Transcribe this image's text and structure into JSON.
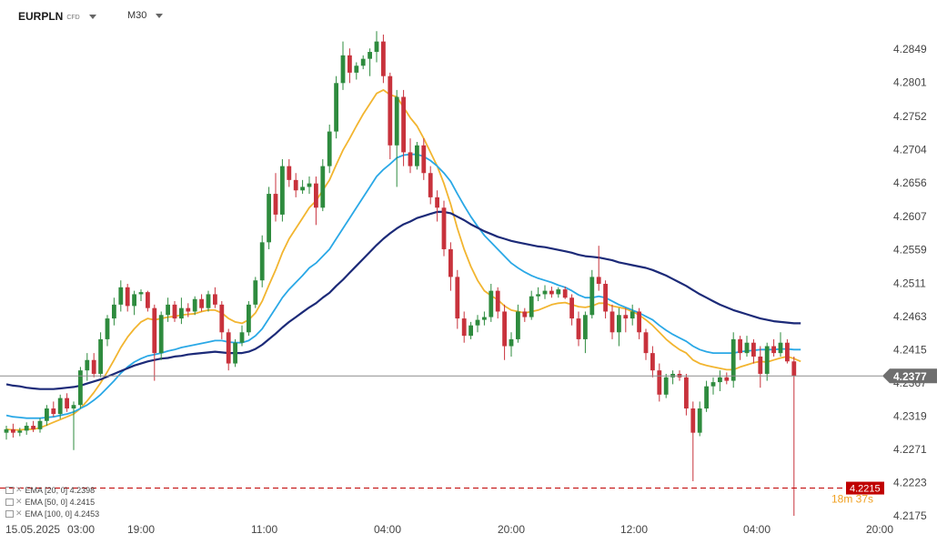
{
  "header": {
    "symbol": "EURPLN",
    "instrument_type": "CFD",
    "timeframe": "M30"
  },
  "legend": [
    {
      "label": "EMA [20, 0] 4.2398",
      "color": "#f2b530"
    },
    {
      "label": "EMA [50, 0] 4.2415",
      "color": "#2aa8e6"
    },
    {
      "label": "EMA [100, 0] 4.2453",
      "color": "#1c2a78"
    }
  ],
  "current_price_label": "4.2377",
  "order_label": "4.2215",
  "countdown": "18m 37s",
  "colors": {
    "up": "#2e8b3e",
    "down": "#c8323c",
    "order": "#c00000",
    "price_line": "#8c8c8c"
  },
  "chart_data": {
    "type": "candlestick",
    "y_axis": {
      "ticks": [
        "4.2849",
        "4.2801",
        "4.2752",
        "4.2704",
        "4.2656",
        "4.2607",
        "4.2559",
        "4.2511",
        "4.2463",
        "4.2415",
        "4.2367",
        "4.2319",
        "4.2271",
        "4.2223",
        "4.2175"
      ],
      "range": [
        4.216,
        4.2875
      ],
      "position": "right"
    },
    "x_axis": {
      "ticks": [
        "15.05.2025",
        "03:00",
        "19:00",
        "11:00",
        "04:00",
        "20:00",
        "12:00",
        "04:00",
        "20:00"
      ]
    },
    "current_price": 4.2377,
    "order_level": 4.2215,
    "candles": [
      [
        4.2295,
        4.2305,
        4.2285,
        4.23
      ],
      [
        4.23,
        4.2308,
        4.2288,
        4.2295
      ],
      [
        4.2295,
        4.2302,
        4.229,
        4.2298
      ],
      [
        4.2298,
        4.231,
        4.2292,
        4.2305
      ],
      [
        4.2305,
        4.2312,
        4.2296,
        4.23
      ],
      [
        4.23,
        4.2316,
        4.2295,
        4.2312
      ],
      [
        4.2312,
        4.2335,
        4.2305,
        4.233
      ],
      [
        4.233,
        4.234,
        4.2318,
        4.2322
      ],
      [
        4.2322,
        4.235,
        4.2315,
        4.2345
      ],
      [
        4.2345,
        4.2352,
        4.2325,
        4.233
      ],
      [
        4.233,
        4.234,
        4.227,
        4.2335
      ],
      [
        4.2335,
        4.239,
        4.233,
        4.2385
      ],
      [
        4.2385,
        4.241,
        4.237,
        4.24
      ],
      [
        4.24,
        4.241,
        4.2375,
        4.238
      ],
      [
        4.238,
        4.244,
        4.2375,
        4.243
      ],
      [
        4.243,
        4.2465,
        4.242,
        4.246
      ],
      [
        4.246,
        4.249,
        4.245,
        4.248
      ],
      [
        4.248,
        4.2515,
        4.247,
        4.2505
      ],
      [
        4.2505,
        4.251,
        4.247,
        4.2478
      ],
      [
        4.2478,
        4.25,
        4.2465,
        4.2495
      ],
      [
        4.2495,
        4.2502,
        4.2485,
        4.2498
      ],
      [
        4.2498,
        4.25,
        4.247,
        4.2475
      ],
      [
        4.2475,
        4.248,
        4.237,
        4.241
      ],
      [
        4.241,
        4.247,
        4.24,
        4.2465
      ],
      [
        4.2465,
        4.249,
        4.2455,
        4.248
      ],
      [
        4.248,
        4.2485,
        4.2455,
        4.246
      ],
      [
        4.246,
        4.249,
        4.2452,
        4.2475
      ],
      [
        4.2475,
        4.2482,
        4.2462,
        4.247
      ],
      [
        4.247,
        4.2492,
        4.2465,
        4.2488
      ],
      [
        4.2488,
        4.2495,
        4.247,
        4.2475
      ],
      [
        4.2475,
        4.25,
        4.247,
        4.2495
      ],
      [
        4.2495,
        4.2505,
        4.2475,
        4.248
      ],
      [
        4.248,
        4.2485,
        4.243,
        4.244
      ],
      [
        4.244,
        4.2445,
        4.2385,
        4.2395
      ],
      [
        4.2395,
        4.243,
        4.239,
        4.2425
      ],
      [
        4.2425,
        4.245,
        4.242,
        4.244
      ],
      [
        4.244,
        4.2485,
        4.2435,
        4.248
      ],
      [
        4.248,
        4.252,
        4.2475,
        4.2515
      ],
      [
        4.2515,
        4.258,
        4.2505,
        4.257
      ],
      [
        4.257,
        4.265,
        4.256,
        4.264
      ],
      [
        4.264,
        4.267,
        4.26,
        4.261
      ],
      [
        4.261,
        4.269,
        4.26,
        4.268
      ],
      [
        4.268,
        4.269,
        4.265,
        4.266
      ],
      [
        4.266,
        4.267,
        4.2635,
        4.2645
      ],
      [
        4.2645,
        4.266,
        4.264,
        4.265
      ],
      [
        4.265,
        4.2665,
        4.264,
        4.2655
      ],
      [
        4.2655,
        4.2665,
        4.2595,
        4.262
      ],
      [
        4.262,
        4.269,
        4.2615,
        4.268
      ],
      [
        4.268,
        4.274,
        4.267,
        4.273
      ],
      [
        4.273,
        4.281,
        4.272,
        4.28
      ],
      [
        4.28,
        4.286,
        4.279,
        4.284
      ],
      [
        4.284,
        4.285,
        4.28,
        4.2815
      ],
      [
        4.2815,
        4.283,
        4.2805,
        4.2825
      ],
      [
        4.2825,
        4.284,
        4.282,
        4.2835
      ],
      [
        4.2835,
        4.285,
        4.281,
        4.2845
      ],
      [
        4.2845,
        4.2875,
        4.283,
        4.286
      ],
      [
        4.286,
        4.287,
        4.28,
        4.281
      ],
      [
        4.281,
        4.2815,
        4.269,
        4.271
      ],
      [
        4.271,
        4.279,
        4.265,
        4.278
      ],
      [
        4.278,
        4.279,
        4.268,
        4.27
      ],
      [
        4.27,
        4.272,
        4.267,
        4.268
      ],
      [
        4.268,
        4.2715,
        4.2675,
        4.271
      ],
      [
        4.271,
        4.272,
        4.266,
        4.267
      ],
      [
        4.267,
        4.268,
        4.2625,
        4.2635
      ],
      [
        4.2635,
        4.2645,
        4.26,
        4.262
      ],
      [
        4.262,
        4.263,
        4.255,
        4.256
      ],
      [
        4.256,
        4.257,
        4.25,
        4.252
      ],
      [
        4.252,
        4.253,
        4.2445,
        4.246
      ],
      [
        4.246,
        4.247,
        4.2425,
        4.2435
      ],
      [
        4.2435,
        4.2455,
        4.243,
        4.245
      ],
      [
        4.245,
        4.2465,
        4.244,
        4.2458
      ],
      [
        4.2458,
        4.247,
        4.245,
        4.2462
      ],
      [
        4.2462,
        4.251,
        4.2455,
        4.25
      ],
      [
        4.25,
        4.2505,
        4.246,
        4.247
      ],
      [
        4.247,
        4.248,
        4.24,
        4.242
      ],
      [
        4.242,
        4.244,
        4.2405,
        4.243
      ],
      [
        4.243,
        4.248,
        4.2425,
        4.247
      ],
      [
        4.247,
        4.2475,
        4.2455,
        4.2462
      ],
      [
        4.2462,
        4.25,
        4.2458,
        4.2492
      ],
      [
        4.2492,
        4.2505,
        4.2485,
        4.2495
      ],
      [
        4.2495,
        4.2508,
        4.2488,
        4.25
      ],
      [
        4.25,
        4.2506,
        4.249,
        4.2495
      ],
      [
        4.2495,
        4.2505,
        4.249,
        4.2502
      ],
      [
        4.2502,
        4.2506,
        4.2488,
        4.249
      ],
      [
        4.249,
        4.2495,
        4.245,
        4.246
      ],
      [
        4.246,
        4.247,
        4.242,
        4.243
      ],
      [
        4.243,
        4.247,
        4.241,
        4.2465
      ],
      [
        4.2465,
        4.253,
        4.246,
        4.252
      ],
      [
        4.252,
        4.2565,
        4.25,
        4.251
      ],
      [
        4.251,
        4.2515,
        4.246,
        4.247
      ],
      [
        4.247,
        4.248,
        4.243,
        4.244
      ],
      [
        4.244,
        4.2475,
        4.242,
        4.2465
      ],
      [
        4.2465,
        4.2475,
        4.244,
        4.246
      ],
      [
        4.246,
        4.248,
        4.245,
        4.247
      ],
      [
        4.247,
        4.2475,
        4.243,
        4.244
      ],
      [
        4.244,
        4.2445,
        4.24,
        4.241
      ],
      [
        4.241,
        4.242,
        4.2375,
        4.2385
      ],
      [
        4.2385,
        4.2395,
        4.234,
        4.235
      ],
      [
        4.235,
        4.238,
        4.2345,
        4.2375
      ],
      [
        4.2375,
        4.2385,
        4.2365,
        4.238
      ],
      [
        4.238,
        4.2385,
        4.237,
        4.2375
      ],
      [
        4.2375,
        4.238,
        4.232,
        4.233
      ],
      [
        4.233,
        4.234,
        4.2225,
        4.2295
      ],
      [
        4.2295,
        4.234,
        4.229,
        4.233
      ],
      [
        4.233,
        4.237,
        4.2325,
        4.2362
      ],
      [
        4.2362,
        4.2375,
        4.235,
        4.2368
      ],
      [
        4.2368,
        4.2385,
        4.2355,
        4.2375
      ],
      [
        4.2375,
        4.2382,
        4.2365,
        4.237
      ],
      [
        4.237,
        4.244,
        4.236,
        4.243
      ],
      [
        4.243,
        4.2435,
        4.24,
        4.241
      ],
      [
        4.241,
        4.2435,
        4.2405,
        4.2425
      ],
      [
        4.2425,
        4.243,
        4.2395,
        4.2405
      ],
      [
        4.2405,
        4.242,
        4.236,
        4.238
      ],
      [
        4.238,
        4.2425,
        4.237,
        4.242
      ],
      [
        4.242,
        4.243,
        4.2405,
        4.241
      ],
      [
        4.241,
        4.244,
        4.2405,
        4.2425
      ],
      [
        4.2425,
        4.243,
        4.2395,
        4.2398
      ],
      [
        4.2398,
        4.2405,
        4.2175,
        4.2377
      ]
    ],
    "ema": [
      {
        "label": "EMA 20",
        "color": "#f2b530",
        "values": [
          4.23,
          4.2299,
          4.2299,
          4.23,
          4.23,
          4.2302,
          4.2306,
          4.231,
          4.2314,
          4.2318,
          4.2322,
          4.233,
          4.2341,
          4.2353,
          4.2367,
          4.2383,
          4.24,
          4.2418,
          4.2433,
          4.2445,
          4.2455,
          4.246,
          4.2458,
          4.246,
          4.2462,
          4.2463,
          4.2465,
          4.2466,
          4.2467,
          4.247,
          4.2472,
          4.2472,
          4.2468,
          4.246,
          4.2455,
          4.2453,
          4.2458,
          4.2468,
          4.2485,
          4.2508,
          4.253,
          4.2555,
          4.2575,
          4.259,
          4.2605,
          4.262,
          4.263,
          4.2645,
          4.266,
          4.2682,
          4.2703,
          4.272,
          4.2738,
          4.2755,
          4.277,
          4.2785,
          4.279,
          4.2783,
          4.278,
          4.2765,
          4.275,
          4.2738,
          4.272,
          4.27,
          4.268,
          4.2655,
          4.2625,
          4.259,
          4.256,
          4.2535,
          4.2515,
          4.25,
          4.2493,
          4.2487,
          4.2478,
          4.2472,
          4.247,
          4.2468,
          4.247,
          4.2472,
          4.2476,
          4.248,
          4.2482,
          4.2483,
          4.248,
          4.2477,
          4.2476,
          4.2478,
          4.2482,
          4.2482,
          4.2478,
          4.2476,
          4.2474,
          4.247,
          4.2465,
          4.2458,
          4.245,
          4.244,
          4.243,
          4.2422,
          4.2415,
          4.241,
          4.24,
          4.2395,
          4.2392,
          4.239,
          4.2388,
          4.2386,
          4.2386,
          4.239,
          4.2393,
          4.2396,
          4.2398,
          4.2397,
          4.24,
          4.2403,
          4.2405,
          4.2402,
          4.2398
        ]
      },
      {
        "label": "EMA 50",
        "color": "#2aa8e6",
        "values": [
          4.232,
          4.2318,
          4.2317,
          4.2316,
          4.2316,
          4.2316,
          4.2317,
          4.2318,
          4.232,
          4.2322,
          4.2325,
          4.233,
          4.2335,
          4.2342,
          4.235,
          4.236,
          4.237,
          4.2381,
          4.239,
          4.2397,
          4.2402,
          4.2406,
          4.2408,
          4.241,
          4.2413,
          4.2415,
          4.2418,
          4.242,
          4.2422,
          4.2424,
          4.2426,
          4.2428,
          4.2428,
          4.2426,
          4.2425,
          4.2425,
          4.2428,
          4.2435,
          4.2445,
          4.246,
          4.2475,
          4.249,
          4.2502,
          4.2512,
          4.2522,
          4.2533,
          4.254,
          4.255,
          4.256,
          4.2575,
          4.259,
          4.2605,
          4.262,
          4.2635,
          4.265,
          4.2665,
          4.2675,
          4.2683,
          4.2692,
          4.2696,
          4.2697,
          4.2697,
          4.2694,
          4.2688,
          4.268,
          4.267,
          4.2658,
          4.264,
          4.2623,
          4.2607,
          4.2593,
          4.258,
          4.257,
          4.256,
          4.255,
          4.254,
          4.2533,
          4.2527,
          4.2522,
          4.2518,
          4.2515,
          4.2512,
          4.2508,
          4.2505,
          4.25,
          4.2494,
          4.249,
          4.249,
          4.2492,
          4.249,
          4.2485,
          4.248,
          4.2476,
          4.2472,
          4.2468,
          4.2463,
          4.2458,
          4.245,
          4.2443,
          4.2437,
          4.2432,
          4.2427,
          4.242,
          4.2415,
          4.2412,
          4.241,
          4.241,
          4.241,
          4.241,
          4.2412,
          4.2413,
          4.2414,
          4.2415,
          4.2415,
          4.2415,
          4.2416,
          4.2416,
          4.2415,
          4.2415
        ]
      },
      {
        "label": "EMA 100",
        "color": "#1c2a78",
        "values": [
          4.2365,
          4.2363,
          4.2362,
          4.236,
          4.2359,
          4.2358,
          4.2358,
          4.2358,
          4.2359,
          4.236,
          4.2361,
          4.2363,
          4.2366,
          4.2369,
          4.2372,
          4.2376,
          4.238,
          4.2384,
          4.2388,
          4.2392,
          4.2395,
          4.2398,
          4.24,
          4.2402,
          4.2403,
          4.2405,
          4.2406,
          4.2408,
          4.2409,
          4.241,
          4.2411,
          4.2412,
          4.2411,
          4.241,
          4.241,
          4.241,
          4.2412,
          4.2416,
          4.2422,
          4.243,
          4.2438,
          4.2447,
          4.2455,
          4.2462,
          4.2469,
          4.2476,
          4.2482,
          4.249,
          4.2497,
          4.2507,
          4.2516,
          4.2526,
          4.2536,
          4.2546,
          4.2556,
          4.2566,
          4.2575,
          4.2583,
          4.259,
          4.2596,
          4.26,
          4.2605,
          4.2608,
          4.2611,
          4.2614,
          4.2614,
          4.2612,
          4.2607,
          4.2602,
          4.2596,
          4.2591,
          4.2586,
          4.2582,
          4.2578,
          4.2575,
          4.2572,
          4.257,
          4.2568,
          4.2566,
          4.2564,
          4.2563,
          4.2561,
          4.2559,
          4.2557,
          4.2555,
          4.2552,
          4.255,
          4.2549,
          4.2548,
          4.2546,
          4.2544,
          4.2541,
          4.2539,
          4.2537,
          4.2535,
          4.2533,
          4.253,
          4.2526,
          4.2522,
          4.2517,
          4.2512,
          4.2507,
          4.2501,
          4.2495,
          4.249,
          4.2485,
          4.248,
          4.2476,
          4.2472,
          4.2469,
          4.2466,
          4.2463,
          4.246,
          4.2458,
          4.2456,
          4.2455,
          4.2454,
          4.2453,
          4.2453
        ]
      }
    ]
  }
}
